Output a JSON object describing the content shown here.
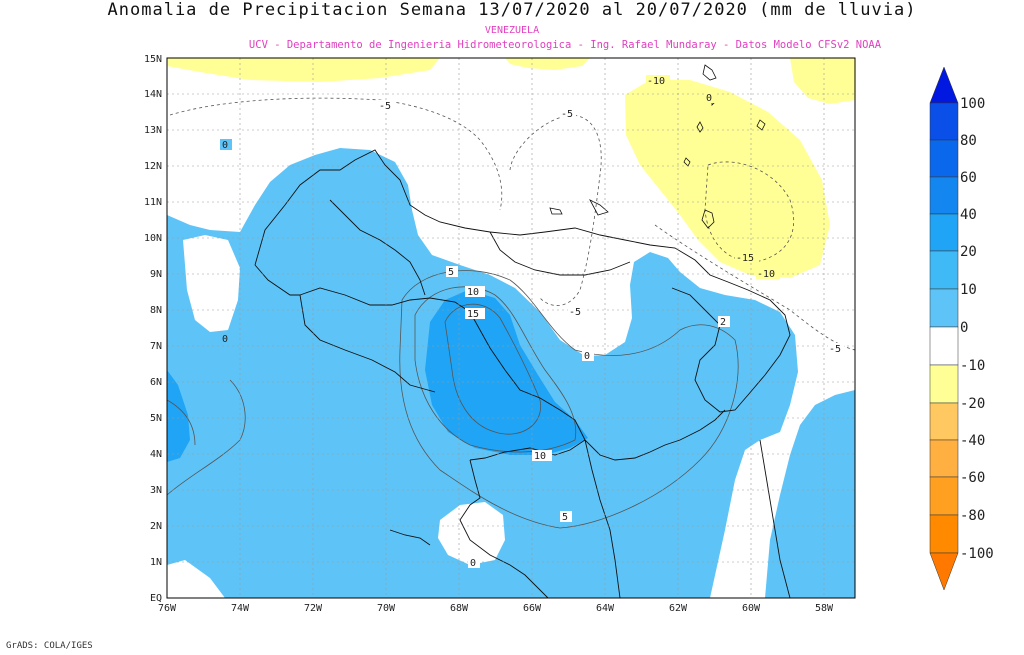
{
  "title": "Anomalia de Precipitacion Semana 13/07/2020 al 20/07/2020 (mm de lluvia)",
  "subtitle_region": "VENEZUELA",
  "subtitle_credits": "UCV - Departamento de Ingenieria Hidrometeorologica - Ing. Rafael Mundaray - Datos Modelo CFSv2 NOAA",
  "credit": "GrADS: COLA/IGES",
  "axes": {
    "lat_labels": [
      "EQ",
      "1N",
      "2N",
      "3N",
      "4N",
      "5N",
      "6N",
      "7N",
      "8N",
      "9N",
      "10N",
      "11N",
      "12N",
      "13N",
      "14N",
      "15N"
    ],
    "lon_labels": [
      "76W",
      "74W",
      "72W",
      "70W",
      "68W",
      "66W",
      "64W",
      "62W",
      "60W",
      "58W"
    ]
  },
  "contour_labels": [
    "0",
    "0",
    "0",
    "-5",
    "-5",
    "-5",
    "-10",
    "-10",
    "-15",
    "5",
    "10",
    "15",
    "0",
    "2",
    "-5",
    "10",
    "5",
    "0"
  ],
  "colorbar": {
    "labels": [
      "100",
      "80",
      "60",
      "40",
      "20",
      "10",
      "0",
      "-10",
      "-20",
      "-40",
      "-60",
      "-80",
      "-100"
    ],
    "colors": [
      "#0018e0",
      "#0a50e8",
      "#0a68ec",
      "#1486f0",
      "#20a4f6",
      "#40baf6",
      "#5ec4f8",
      "#ffffff",
      "#ffff96",
      "#ffc860",
      "#ffa020",
      "#ff8a00",
      "#ff7800"
    ]
  }
}
